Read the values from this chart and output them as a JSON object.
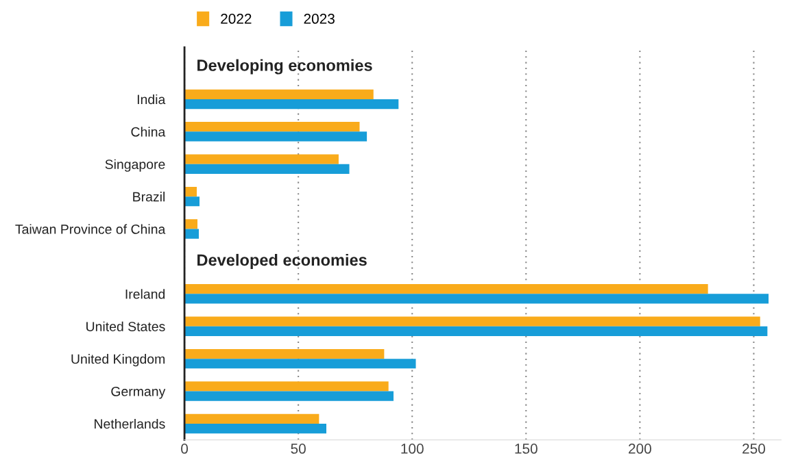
{
  "chart_data": {
    "type": "bar",
    "orientation": "horizontal",
    "categories": [
      null,
      "India",
      "China",
      "Singapore",
      "Brazil",
      "Taiwan Province of China",
      null,
      "Ireland",
      "United States",
      "United Kingdom",
      "Germany",
      "Netherlands"
    ],
    "series": [
      {
        "name": "2022",
        "color": "#f9ab1b",
        "values": [
          null,
          83,
          76.9,
          67.7,
          5.4,
          5.7,
          null,
          229.9,
          252.8,
          87.7,
          89.6,
          59.1
        ]
      },
      {
        "name": "2023",
        "color": "#179dd8",
        "values": [
          null,
          94,
          80.1,
          72.4,
          6.6,
          6.3,
          null,
          256.5,
          256,
          101.6,
          91.8,
          62.3
        ]
      }
    ],
    "annotations": [
      "Developing economies",
      "Developed economies"
    ],
    "xlim": [
      0,
      262
    ],
    "xticks": [
      0,
      50,
      100,
      150,
      200,
      250
    ],
    "grid": "x",
    "legend": "top left"
  }
}
